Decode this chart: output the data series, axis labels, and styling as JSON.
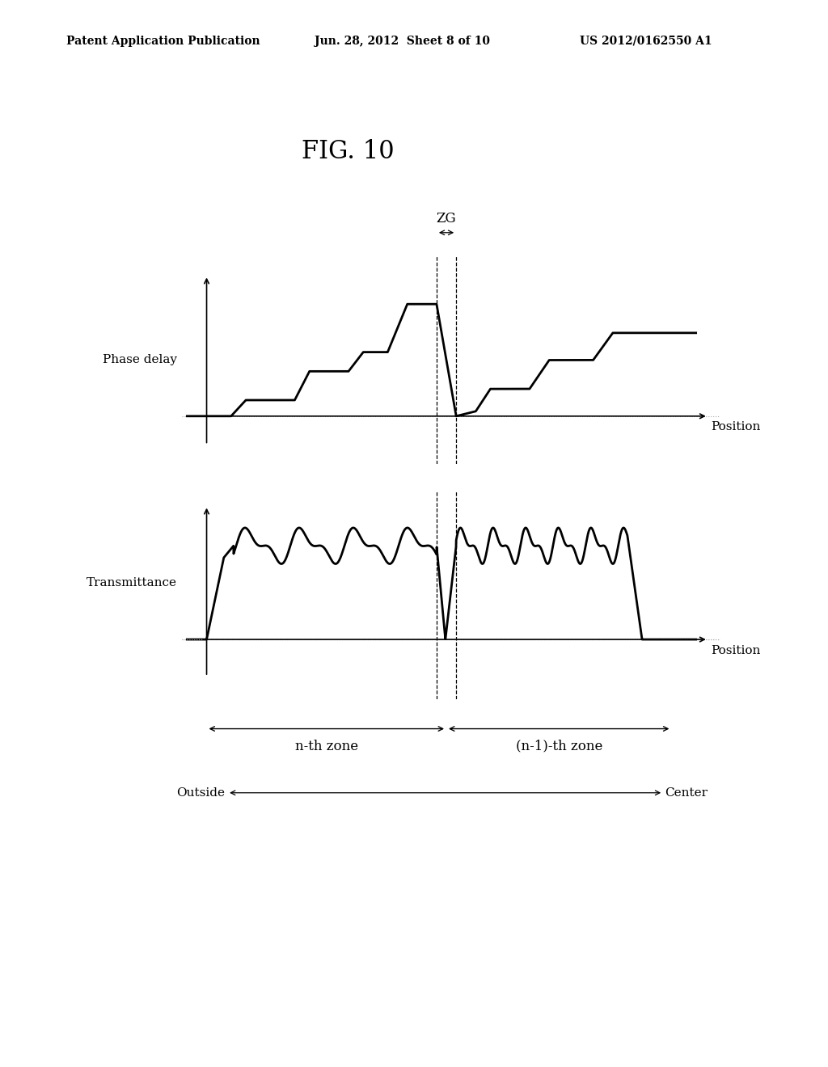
{
  "title": "FIG. 10",
  "header_left": "Patent Application Publication",
  "header_center": "Jun. 28, 2012  Sheet 8 of 10",
  "header_right": "US 2012/0162550 A1",
  "phase_delay_label": "Phase delay",
  "transmittance_label": "Transmittance",
  "position_label": "Position",
  "zg_label": "ZG",
  "nth_zone_label": "n-th zone",
  "n1th_zone_label": "(n-1)-th zone",
  "outside_label": "Outside",
  "center_label": "Center",
  "background_color": "#ffffff",
  "line_color": "#000000",
  "axis_color": "#000000",
  "dashed_color": "#555555",
  "grid_color": "#aaaaaa"
}
